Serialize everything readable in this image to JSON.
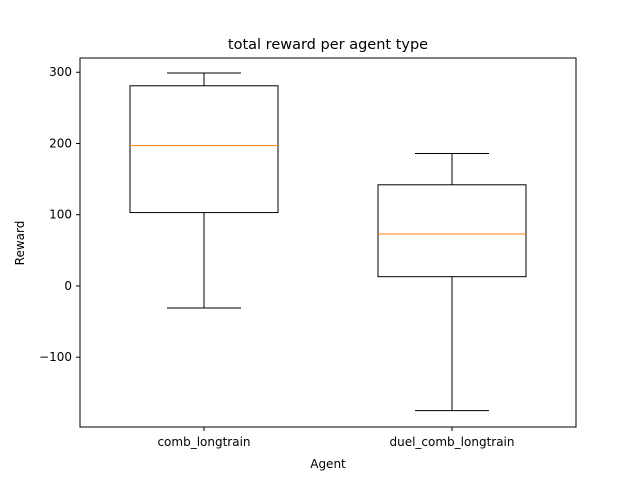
{
  "chart_data": {
    "type": "box",
    "title": "total reward per agent type",
    "xlabel": "Agent",
    "ylabel": "Reward",
    "ylim": [
      -198,
      320
    ],
    "yticks": [
      300,
      200,
      100,
      0,
      -100
    ],
    "ytick_labels": [
      "300",
      "200",
      "100",
      "0",
      "−100"
    ],
    "grid": false,
    "categories": [
      "comb_longtrain",
      "duel_comb_longtrain"
    ],
    "boxes": [
      {
        "name": "comb_longtrain",
        "whisker_low": -31,
        "q1": 103,
        "median": 197,
        "q3": 281,
        "whisker_high": 299
      },
      {
        "name": "duel_comb_longtrain",
        "whisker_low": -175,
        "q1": 13,
        "median": 73,
        "q3": 142,
        "whisker_high": 186
      }
    ],
    "colors": {
      "box": "#000000",
      "median": "#ff7f0e",
      "whisker": "#000000"
    }
  }
}
